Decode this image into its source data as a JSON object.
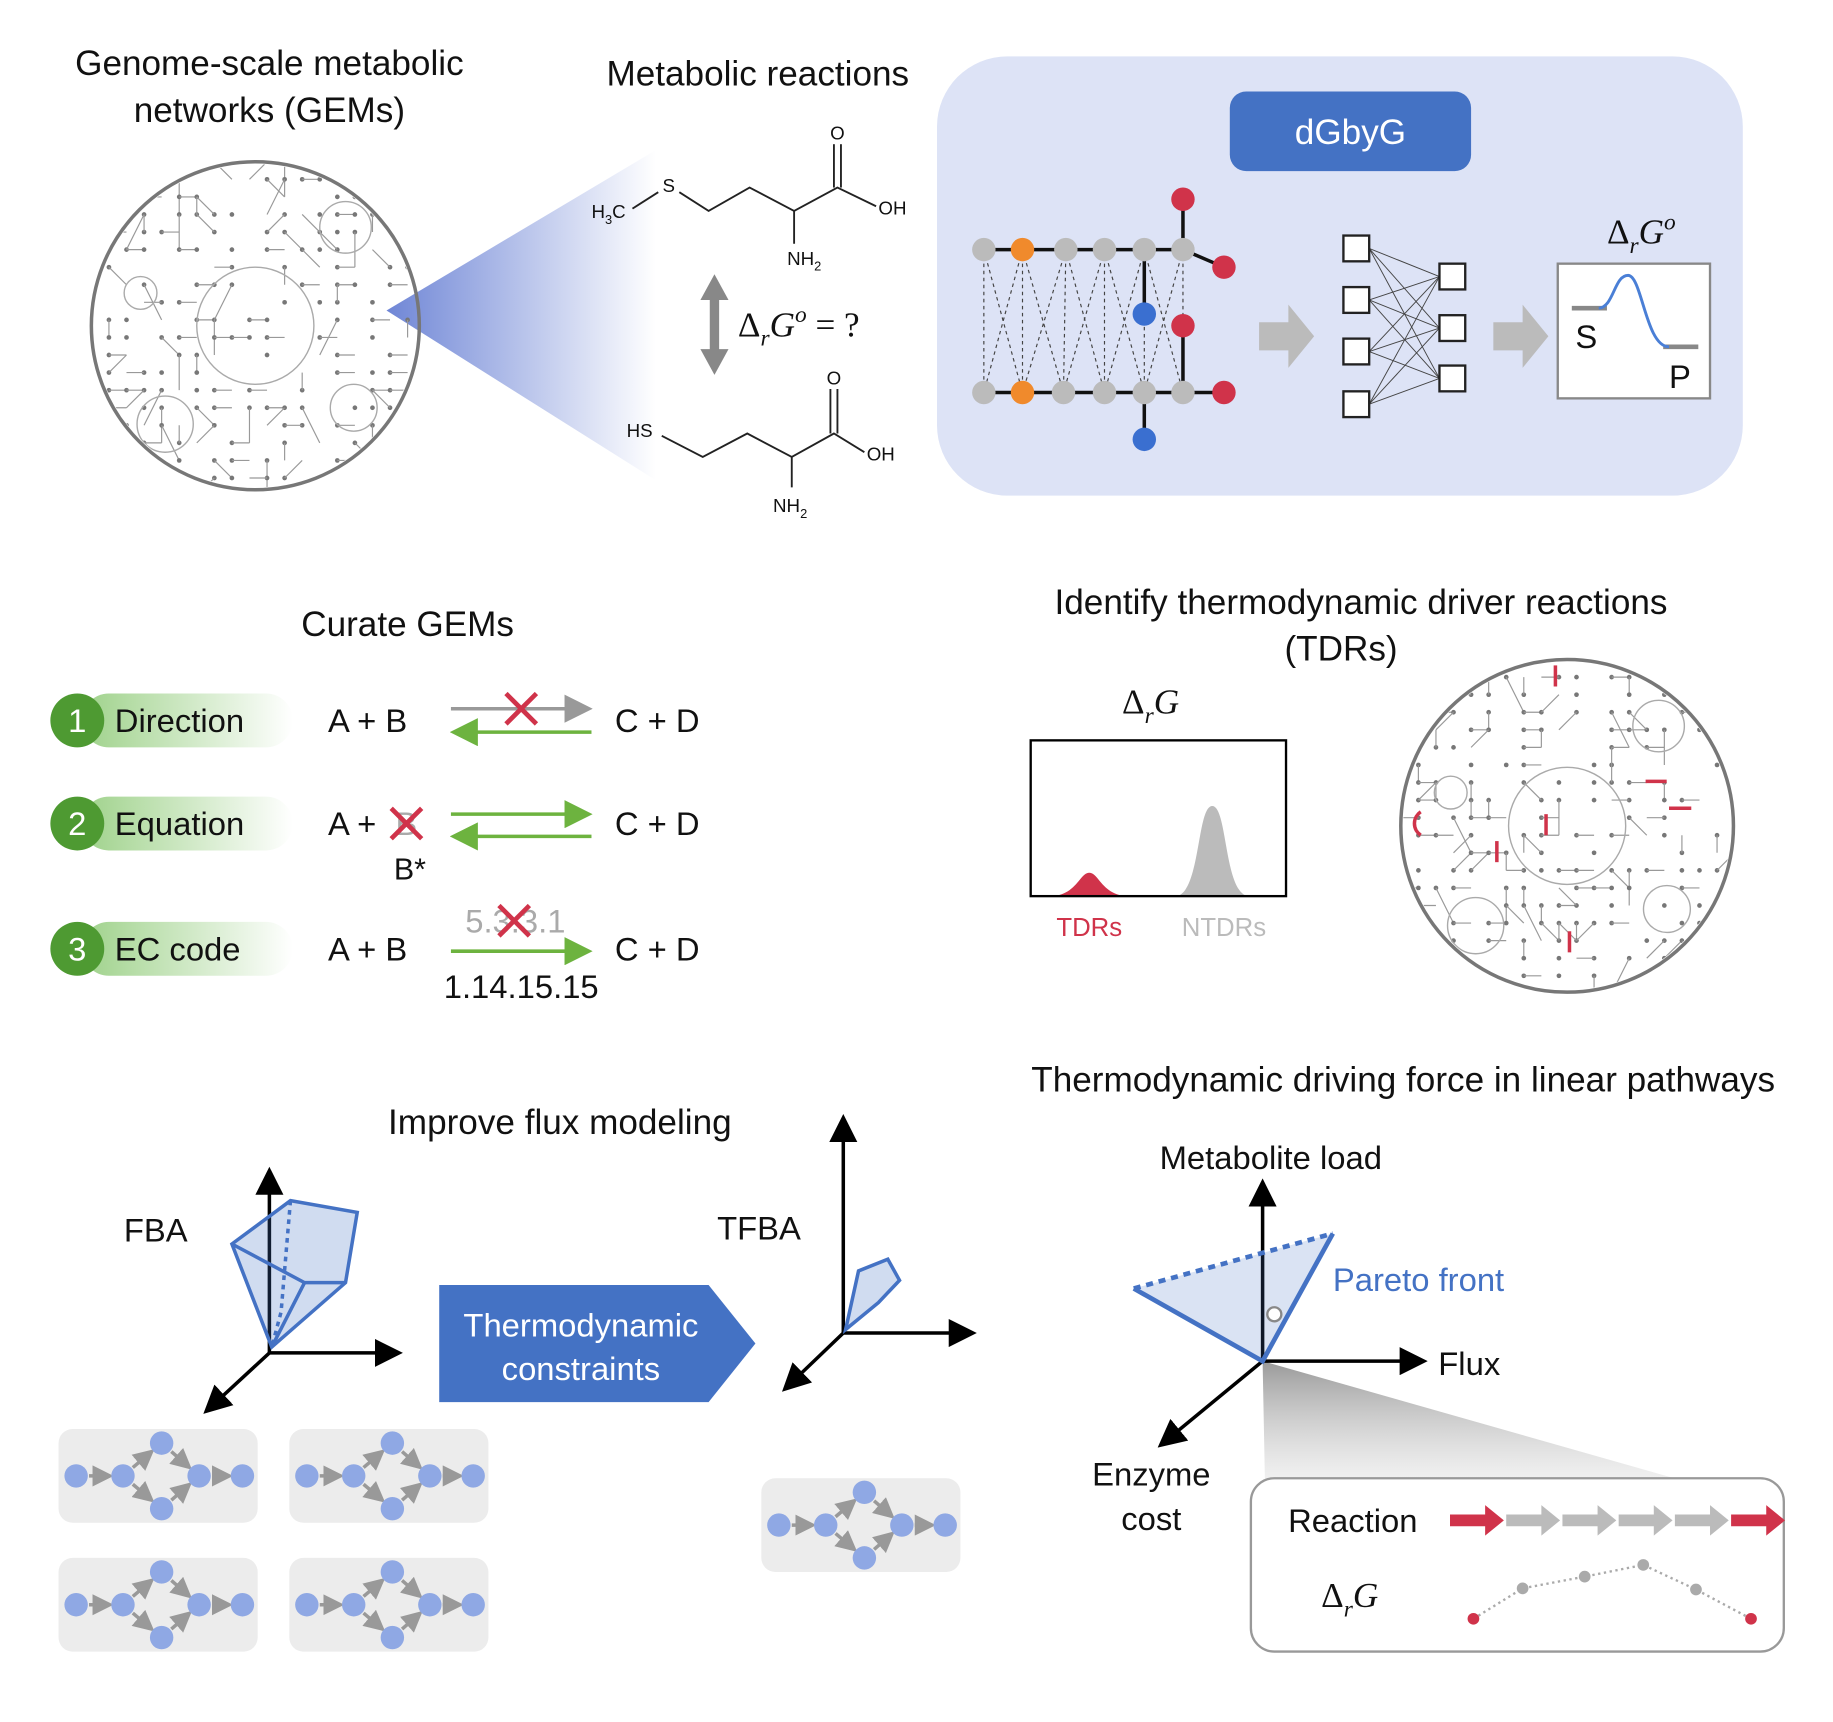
{
  "gems": {
    "title": [
      "Genome-scale metabolic",
      "networks (GEMs)"
    ]
  },
  "reactions": {
    "title": "Metabolic reactions",
    "methionine": {
      "ch3": [
        "H",
        "3",
        "C"
      ],
      "s": "S",
      "o": "O",
      "oh": "OH",
      "nh2": [
        "NH",
        "2"
      ]
    },
    "homocysteine": {
      "hs": "HS",
      "o": "O",
      "oh": "OH",
      "nh2": [
        "NH",
        "2"
      ]
    },
    "question": {
      "delta": "Δ",
      "sub": "r",
      "g": "G",
      "sup": "o",
      "rest": " = ?"
    }
  },
  "dgbyg": {
    "title": "dGbyG",
    "energy": {
      "delta": "Δ",
      "sub": "r",
      "g": "G",
      "sup": "o"
    },
    "s": "S",
    "p": "P"
  },
  "curate": {
    "title": "Curate GEMs",
    "steps": [
      {
        "number": "1",
        "label": "Direction",
        "left": "A + B",
        "right": "C + D"
      },
      {
        "number": "2",
        "label": "Equation",
        "left": "A +",
        "removed": "B",
        "replacement": "B*",
        "right": "C + D"
      },
      {
        "number": "3",
        "label": "EC code",
        "left": "A + B",
        "old_ec": "5.3.3.1",
        "new_ec": "1.14.15.15",
        "right": "C + D"
      }
    ]
  },
  "tdr": {
    "title": [
      "Identify thermodynamic driver reactions",
      "(TDRs)"
    ],
    "axis": {
      "delta": "Δ",
      "sub": "r",
      "g": "G"
    },
    "tdrs": "TDRs",
    "ntdrs": "NTDRs"
  },
  "flux": {
    "title": "Improve flux modeling",
    "fba": "FBA",
    "tfba": "TFBA",
    "constraints": [
      "Thermodynamic",
      "constraints"
    ]
  },
  "pathway": {
    "title": "Thermodynamic driving force in linear pathways",
    "y_axis": "Metabolite load",
    "x_axis": "Flux",
    "z_axis": [
      "Enzyme",
      "cost"
    ],
    "pareto": "Pareto front",
    "reaction": "Reaction",
    "energy": {
      "delta": "Δ",
      "sub": "r",
      "g": "G"
    }
  }
}
